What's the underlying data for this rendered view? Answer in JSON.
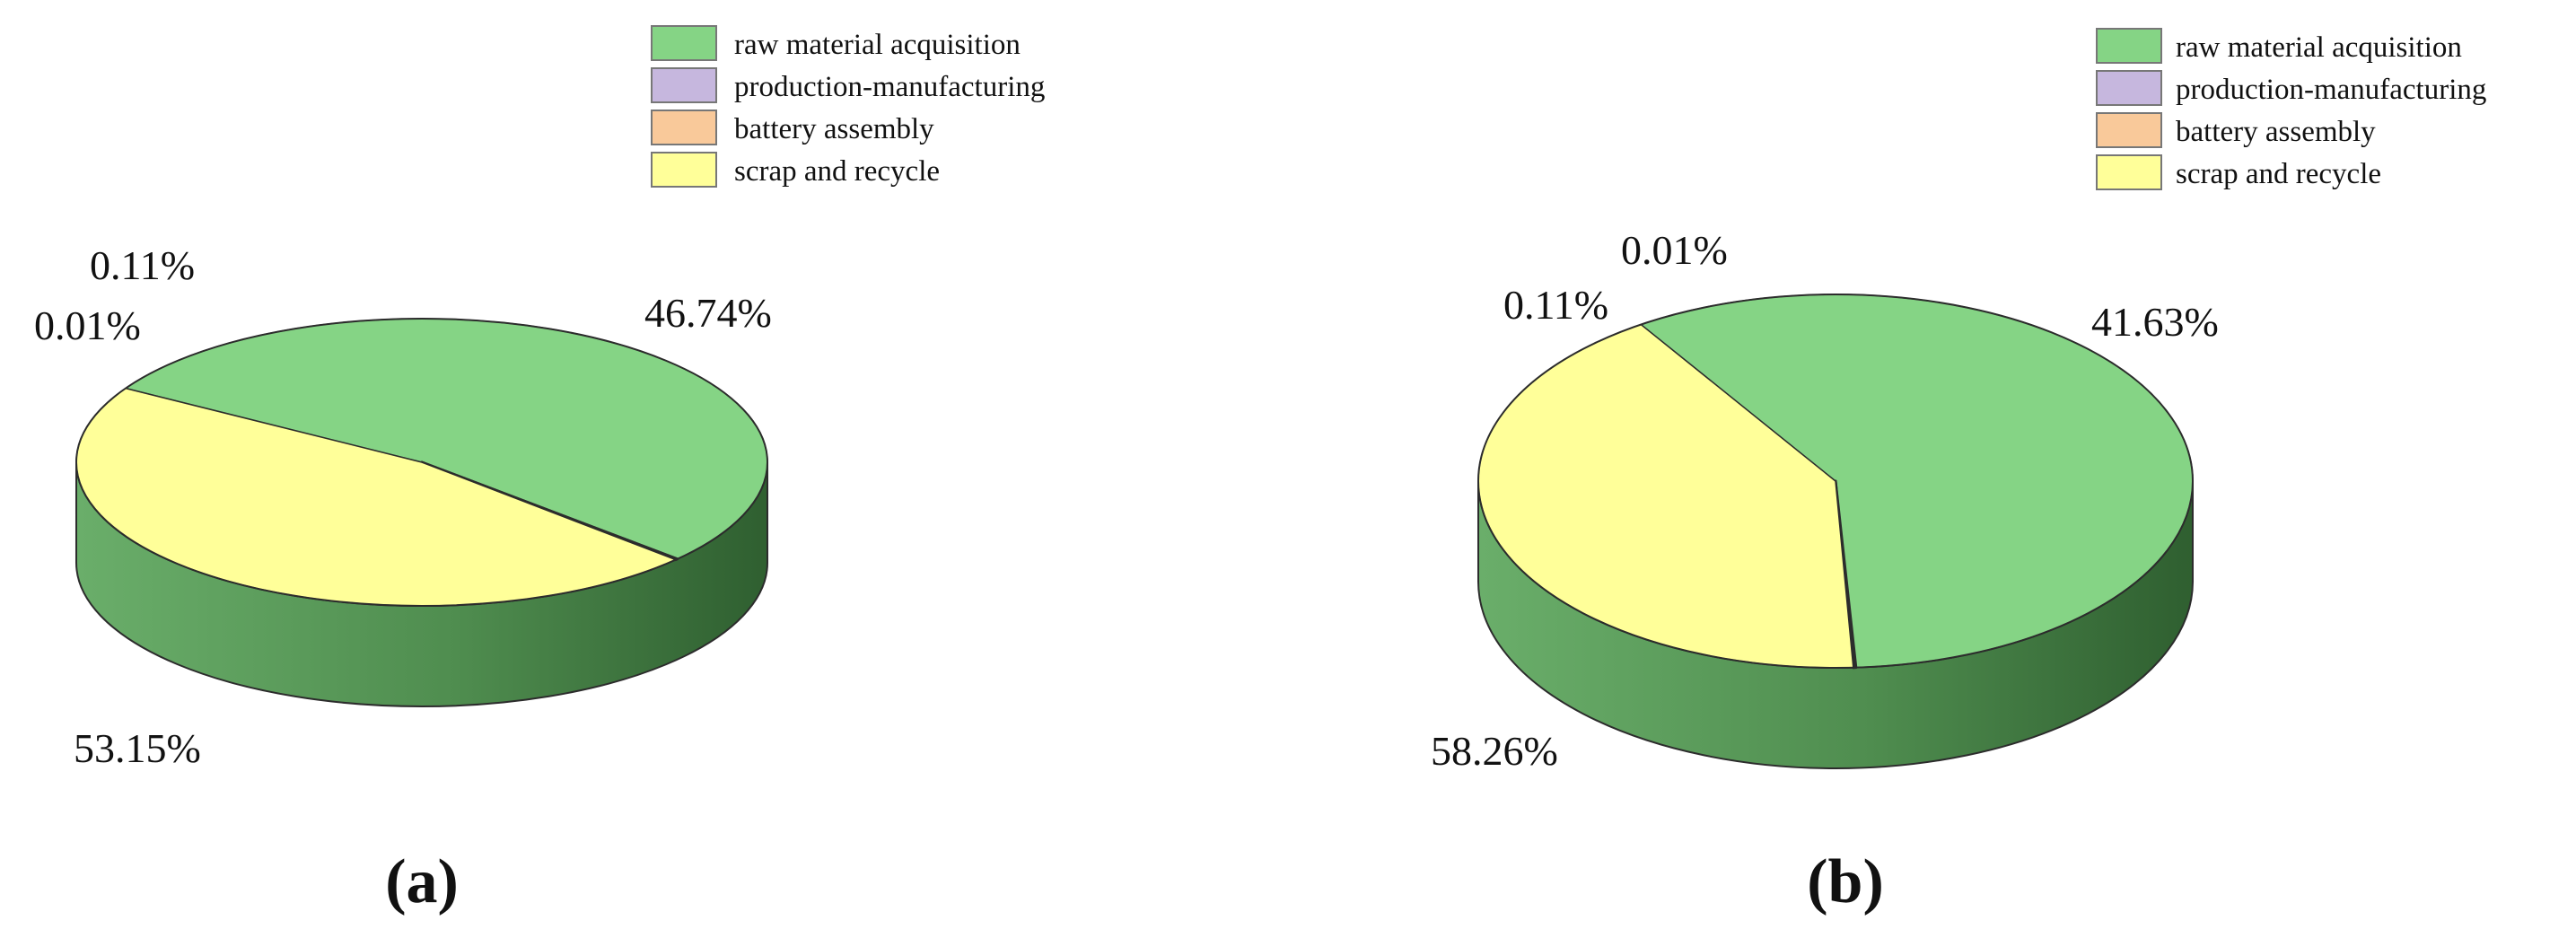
{
  "chart_data": [
    {
      "type": "pie",
      "panel_label": "(a)",
      "categories": [
        "raw material acquisition",
        "production-manufacturing",
        "battery assembly",
        "scrap and recycle"
      ],
      "values": [
        53.15,
        0.01,
        0.11,
        46.74
      ],
      "value_labels": [
        "53.15%",
        "0.01%",
        "0.11%",
        "46.74%"
      ],
      "colors": [
        "#85d485",
        "#c6b7de",
        "#f9c99a",
        "#ffff99"
      ],
      "legend_position": "top-right",
      "style": "3d"
    },
    {
      "type": "pie",
      "panel_label": "(b)",
      "categories": [
        "raw material acquisition",
        "production-manufacturing",
        "battery assembly",
        "scrap and recycle"
      ],
      "values": [
        58.26,
        0.11,
        0.01,
        41.63
      ],
      "value_labels": [
        "58.26%",
        "0.11%",
        "0.01%",
        "41.63%"
      ],
      "colors": [
        "#85d485",
        "#c6b7de",
        "#f9c99a",
        "#ffff99"
      ],
      "legend_position": "top-right",
      "style": "3d"
    }
  ]
}
